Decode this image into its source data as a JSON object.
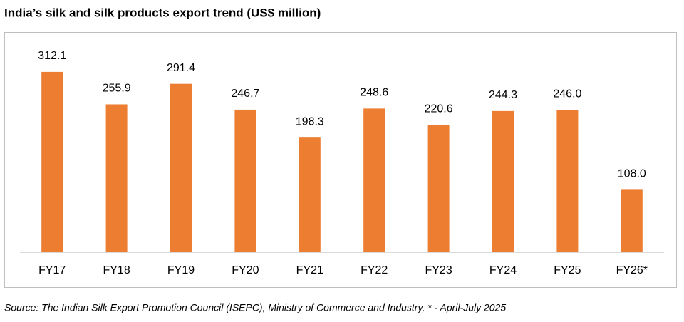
{
  "chart_data": {
    "type": "bar",
    "title": "India’s silk and silk products export trend (US$ million)",
    "categories": [
      "FY17",
      "FY18",
      "FY19",
      "FY20",
      "FY21",
      "FY22",
      "FY23",
      "FY24",
      "FY25",
      "FY26*"
    ],
    "values": [
      312.1,
      255.9,
      291.4,
      246.7,
      198.3,
      248.6,
      220.6,
      244.3,
      246.0,
      108.0
    ],
    "value_labels": [
      "312.1",
      "255.9",
      "291.4",
      "246.7",
      "198.3",
      "248.6",
      "220.6",
      "244.3",
      "246.0",
      "108.0"
    ],
    "color": "#ed7d31",
    "source": "Source: The Indian Silk Export Promotion Council (ISEPC), Ministry of Commerce and Industry, * - April-July 2025"
  }
}
